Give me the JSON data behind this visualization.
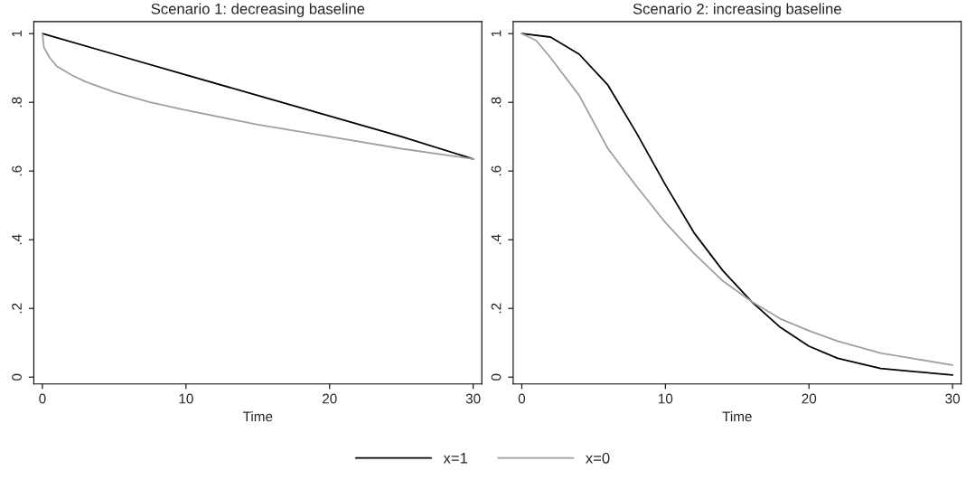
{
  "chart_data": [
    {
      "type": "line",
      "title": "Scenario 1: decreasing baseline",
      "xlabel": "Time",
      "xlim": [
        -0.6,
        30.6
      ],
      "xticks": [
        0,
        10,
        20,
        30
      ],
      "ylim": [
        -0.02,
        1.035
      ],
      "yticks": [
        {
          "value": 0,
          "label": "0"
        },
        {
          "value": 0.2,
          "label": ".2"
        },
        {
          "value": 0.4,
          "label": ".4"
        },
        {
          "value": 0.6,
          "label": ".6"
        },
        {
          "value": 0.8,
          "label": ".8"
        },
        {
          "value": 1,
          "label": "1"
        }
      ],
      "grid": false,
      "legend": "bottom",
      "line_style": "solid",
      "series": [
        {
          "name": "x=1",
          "color": "#000000",
          "x": [
            0,
            5,
            10,
            15,
            20,
            25,
            30
          ],
          "values": [
            1,
            0.94,
            0.88,
            0.82,
            0.76,
            0.7,
            0.635
          ]
        },
        {
          "name": "x=0",
          "color": "#a0a0a0",
          "x": [
            0,
            0.1,
            0.5,
            1,
            2,
            3,
            5,
            7.5,
            10,
            15,
            20,
            25,
            30
          ],
          "values": [
            1,
            0.96,
            0.93,
            0.905,
            0.88,
            0.86,
            0.83,
            0.8,
            0.777,
            0.735,
            0.7,
            0.665,
            0.635
          ]
        }
      ]
    },
    {
      "type": "line",
      "title": "Scenario 2: increasing baseline",
      "xlabel": "Time",
      "xlim": [
        -0.6,
        30.6
      ],
      "xticks": [
        0,
        10,
        20,
        30
      ],
      "ylim": [
        -0.02,
        1.035
      ],
      "yticks": [
        {
          "value": 0,
          "label": "0"
        },
        {
          "value": 0.2,
          "label": ".2"
        },
        {
          "value": 0.4,
          "label": ".4"
        },
        {
          "value": 0.6,
          "label": ".6"
        },
        {
          "value": 0.8,
          "label": ".8"
        },
        {
          "value": 1,
          "label": "1"
        }
      ],
      "grid": false,
      "line_style": "solid",
      "series": [
        {
          "color": "#000000",
          "x": [
            0,
            2,
            4,
            6,
            8,
            10,
            12,
            14,
            16,
            18,
            20,
            22,
            25,
            30
          ],
          "values": [
            1,
            0.99,
            0.94,
            0.85,
            0.71,
            0.56,
            0.42,
            0.31,
            0.22,
            0.145,
            0.09,
            0.055,
            0.025,
            0.006
          ]
        },
        {
          "color": "#a0a0a0",
          "x": [
            0,
            1,
            2,
            4,
            6,
            8,
            10,
            12,
            14,
            16,
            18,
            20,
            22,
            25,
            30
          ],
          "values": [
            1,
            0.98,
            0.93,
            0.82,
            0.665,
            0.555,
            0.45,
            0.36,
            0.28,
            0.22,
            0.17,
            0.135,
            0.105,
            0.07,
            0.035
          ]
        }
      ]
    }
  ]
}
